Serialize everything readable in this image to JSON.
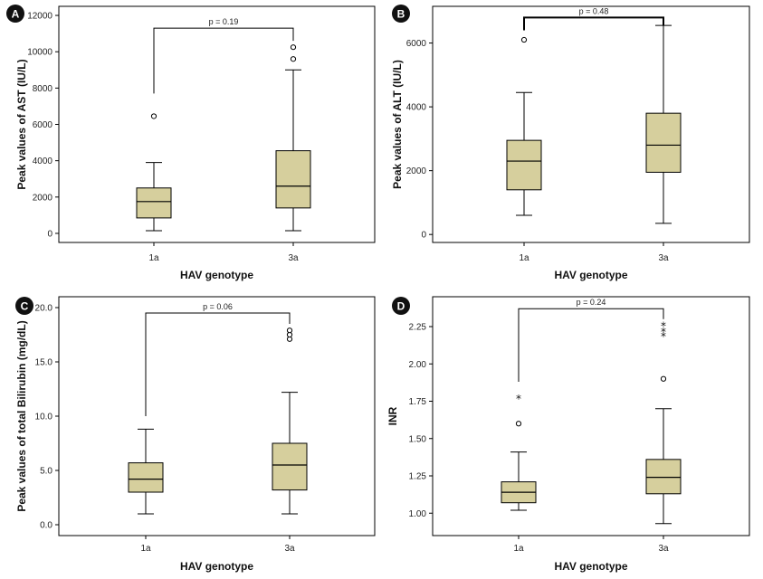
{
  "colors": {
    "box_fill": "#d6cf9d",
    "stroke": "#000000",
    "badge": "#111111"
  },
  "chart_data": [
    {
      "panel": "A",
      "type": "boxplot",
      "xlabel": "HAV genotype",
      "ylabel": "Peak values of AST (IU/L)",
      "categories": [
        "1a",
        "3a"
      ],
      "ylim": [
        -500,
        12500
      ],
      "yticks": [
        0,
        2000,
        4000,
        6000,
        8000,
        10000,
        12000
      ],
      "ytick_labels": [
        "0",
        "2000",
        "4000",
        "6000",
        "8000",
        "10000",
        "12000"
      ],
      "boxes": [
        {
          "min": 150,
          "q1": 850,
          "median": 1750,
          "q3": 2500,
          "max": 3900,
          "outliers": [
            6450
          ],
          "extremes": []
        },
        {
          "min": 150,
          "q1": 1400,
          "median": 2600,
          "q3": 4550,
          "max": 9000,
          "outliers": [
            9600,
            10250
          ],
          "extremes": []
        }
      ],
      "p_label": "p = 0.19",
      "bracket_y": 11300,
      "bracket_left_y": 7700,
      "bracket_right_y": 10600,
      "bracket_thick": false
    },
    {
      "panel": "B",
      "type": "boxplot",
      "xlabel": "HAV genotype",
      "ylabel": "Peak values of ALT (IU/L)",
      "categories": [
        "1a",
        "3a"
      ],
      "ylim": [
        -250,
        7150
      ],
      "yticks": [
        0,
        2000,
        4000,
        6000
      ],
      "ytick_labels": [
        "0",
        "2000",
        "4000",
        "6000"
      ],
      "boxes": [
        {
          "min": 600,
          "q1": 1400,
          "median": 2300,
          "q3": 2950,
          "max": 4450,
          "outliers": [
            6100
          ],
          "extremes": []
        },
        {
          "min": 350,
          "q1": 1950,
          "median": 2800,
          "q3": 3800,
          "max": 6550,
          "outliers": [],
          "extremes": []
        }
      ],
      "p_label": "p = 0.48",
      "bracket_y": 6800,
      "bracket_left_y": 6400,
      "bracket_right_y": 6550,
      "bracket_thick": true
    },
    {
      "panel": "C",
      "type": "boxplot",
      "xlabel": "HAV genotype",
      "ylabel": "Peak values of total Bilirubin (mg/dL)",
      "categories": [
        "1a",
        "3a"
      ],
      "ylim": [
        -1,
        21
      ],
      "yticks": [
        0,
        5,
        10,
        15,
        20
      ],
      "ytick_labels": [
        "0.0",
        "5.0",
        "10.0",
        "15.0",
        "20.0"
      ],
      "boxes": [
        {
          "min": 1.0,
          "q1": 3.0,
          "median": 4.2,
          "q3": 5.7,
          "max": 8.8,
          "outliers": [],
          "extremes": []
        },
        {
          "min": 1.0,
          "q1": 3.2,
          "median": 5.5,
          "q3": 7.5,
          "max": 12.2,
          "outliers": [
            17.1,
            17.5,
            17.9
          ],
          "extremes": []
        }
      ],
      "p_label": "p = 0.06",
      "bracket_y": 19.5,
      "bracket_left_y": 10.0,
      "bracket_right_y": 18.5,
      "bracket_thick": false
    },
    {
      "panel": "D",
      "type": "boxplot",
      "xlabel": "HAV genotype",
      "ylabel": "INR",
      "categories": [
        "1a",
        "3a"
      ],
      "ylim": [
        0.85,
        2.45
      ],
      "yticks": [
        1.0,
        1.25,
        1.5,
        1.75,
        2.0,
        2.25
      ],
      "ytick_labels": [
        "1.00",
        "1.25",
        "1.50",
        "1.75",
        "2.00",
        "2.25"
      ],
      "boxes": [
        {
          "min": 1.02,
          "q1": 1.07,
          "median": 1.14,
          "q3": 1.21,
          "max": 1.41,
          "outliers": [
            1.6
          ],
          "extremes": [
            1.77
          ]
        },
        {
          "min": 0.93,
          "q1": 1.13,
          "median": 1.24,
          "q3": 1.36,
          "max": 1.7,
          "outliers": [
            1.9
          ],
          "extremes": [
            2.19,
            2.22,
            2.26
          ]
        }
      ],
      "p_label": "p = 0.24",
      "bracket_y": 2.37,
      "bracket_left_y": 1.88,
      "bracket_right_y": 2.3,
      "bracket_thick": false
    }
  ]
}
